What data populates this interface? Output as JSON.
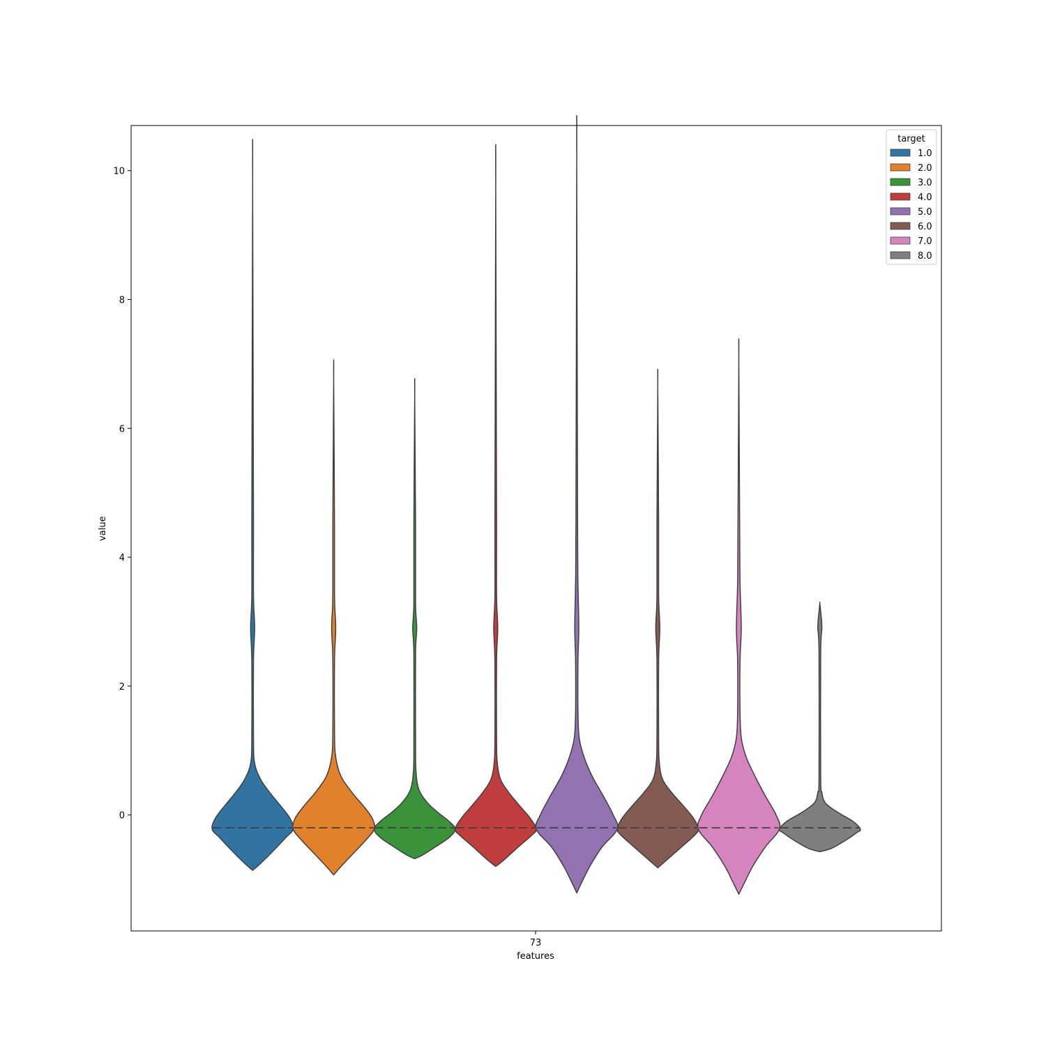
{
  "chart_data": {
    "type": "violin",
    "title": "",
    "xlabel": "features",
    "ylabel": "value",
    "categories": [
      "73"
    ],
    "ylim": [
      -1.8,
      10.7
    ],
    "yticks": [
      0,
      2,
      4,
      6,
      8,
      10
    ],
    "grid": false,
    "legend": {
      "title": "target",
      "placement": "top-right"
    },
    "series": [
      {
        "name": "1.0",
        "color": "#3274a1",
        "min": -0.86,
        "max": 9.82,
        "median": -0.2,
        "quartiles": [
          -0.2,
          -0.2
        ],
        "secondary_mode": 2.9,
        "density": [
          [
            -0.86,
            0.0
          ],
          [
            -0.75,
            0.2
          ],
          [
            -0.55,
            0.52
          ],
          [
            -0.35,
            0.82
          ],
          [
            -0.22,
            1.0
          ],
          [
            -0.05,
            0.92
          ],
          [
            0.15,
            0.68
          ],
          [
            0.35,
            0.42
          ],
          [
            0.55,
            0.2
          ],
          [
            0.8,
            0.05
          ],
          [
            1.2,
            0.02
          ],
          [
            2.4,
            0.02
          ],
          [
            2.9,
            0.05
          ],
          [
            3.4,
            0.02
          ],
          [
            4.5,
            0.01
          ],
          [
            9.82,
            0.0
          ]
        ]
      },
      {
        "name": "2.0",
        "color": "#e1812c",
        "min": -0.93,
        "max": 6.78,
        "median": -0.2,
        "quartiles": [
          -0.2,
          -0.2
        ],
        "secondary_mode": 2.9,
        "density": [
          [
            -0.93,
            0.0
          ],
          [
            -0.8,
            0.18
          ],
          [
            -0.6,
            0.48
          ],
          [
            -0.4,
            0.78
          ],
          [
            -0.22,
            1.0
          ],
          [
            -0.05,
            0.95
          ],
          [
            0.15,
            0.72
          ],
          [
            0.35,
            0.45
          ],
          [
            0.6,
            0.18
          ],
          [
            0.9,
            0.05
          ],
          [
            1.3,
            0.02
          ],
          [
            2.4,
            0.02
          ],
          [
            2.9,
            0.05
          ],
          [
            3.4,
            0.02
          ],
          [
            4.5,
            0.01
          ],
          [
            6.78,
            0.0
          ]
        ]
      },
      {
        "name": "3.0",
        "color": "#3a923a",
        "min": -0.68,
        "max": 6.52,
        "median": -0.2,
        "quartiles": [
          -0.2,
          -0.2
        ],
        "secondary_mode": 2.9,
        "density": [
          [
            -0.68,
            0.0
          ],
          [
            -0.62,
            0.2
          ],
          [
            -0.5,
            0.5
          ],
          [
            -0.35,
            0.85
          ],
          [
            -0.22,
            1.0
          ],
          [
            -0.1,
            0.85
          ],
          [
            0.05,
            0.55
          ],
          [
            0.2,
            0.3
          ],
          [
            0.4,
            0.1
          ],
          [
            0.7,
            0.03
          ],
          [
            1.2,
            0.02
          ],
          [
            2.5,
            0.02
          ],
          [
            2.9,
            0.05
          ],
          [
            3.3,
            0.02
          ],
          [
            4.5,
            0.01
          ],
          [
            6.52,
            0.0
          ]
        ]
      },
      {
        "name": "4.0",
        "color": "#c03d3e",
        "min": -0.8,
        "max": 9.75,
        "median": -0.2,
        "quartiles": [
          -0.2,
          -0.2
        ],
        "secondary_mode": 2.9,
        "density": [
          [
            -0.8,
            0.0
          ],
          [
            -0.7,
            0.2
          ],
          [
            -0.5,
            0.55
          ],
          [
            -0.32,
            0.88
          ],
          [
            -0.22,
            1.0
          ],
          [
            -0.05,
            0.85
          ],
          [
            0.15,
            0.58
          ],
          [
            0.35,
            0.32
          ],
          [
            0.55,
            0.12
          ],
          [
            0.8,
            0.04
          ],
          [
            1.2,
            0.02
          ],
          [
            2.4,
            0.02
          ],
          [
            2.9,
            0.05
          ],
          [
            3.4,
            0.02
          ],
          [
            4.5,
            0.01
          ],
          [
            9.75,
            0.0
          ]
        ]
      },
      {
        "name": "5.0",
        "color": "#9372b2",
        "min": -1.21,
        "max": 10.15,
        "median": -0.2,
        "quartiles": [
          -0.2,
          -0.2
        ],
        "secondary_mode": 2.9,
        "density": [
          [
            -1.21,
            0.0
          ],
          [
            -1.05,
            0.12
          ],
          [
            -0.8,
            0.32
          ],
          [
            -0.5,
            0.62
          ],
          [
            -0.22,
            1.0
          ],
          [
            0.0,
            0.9
          ],
          [
            0.3,
            0.65
          ],
          [
            0.6,
            0.38
          ],
          [
            0.9,
            0.18
          ],
          [
            1.2,
            0.06
          ],
          [
            1.6,
            0.03
          ],
          [
            2.4,
            0.03
          ],
          [
            2.9,
            0.05
          ],
          [
            3.6,
            0.03
          ],
          [
            4.5,
            0.01
          ],
          [
            10.15,
            0.0
          ]
        ]
      },
      {
        "name": "6.0",
        "color": "#845b53",
        "min": -0.82,
        "max": 6.65,
        "median": -0.2,
        "quartiles": [
          -0.2,
          -0.2
        ],
        "secondary_mode": 2.9,
        "density": [
          [
            -0.82,
            0.0
          ],
          [
            -0.7,
            0.22
          ],
          [
            -0.5,
            0.58
          ],
          [
            -0.32,
            0.9
          ],
          [
            -0.22,
            1.0
          ],
          [
            -0.05,
            0.88
          ],
          [
            0.15,
            0.62
          ],
          [
            0.35,
            0.34
          ],
          [
            0.55,
            0.12
          ],
          [
            0.8,
            0.04
          ],
          [
            1.2,
            0.02
          ],
          [
            2.4,
            0.02
          ],
          [
            2.9,
            0.05
          ],
          [
            3.4,
            0.02
          ],
          [
            4.5,
            0.01
          ],
          [
            6.65,
            0.0
          ]
        ]
      },
      {
        "name": "7.0",
        "color": "#d684bd",
        "min": -1.23,
        "max": 7.07,
        "median": -0.2,
        "quartiles": [
          -0.2,
          -0.2
        ],
        "secondary_mode": 2.9,
        "density": [
          [
            -1.23,
            0.0
          ],
          [
            -1.05,
            0.14
          ],
          [
            -0.8,
            0.34
          ],
          [
            -0.5,
            0.65
          ],
          [
            -0.22,
            1.0
          ],
          [
            0.0,
            0.92
          ],
          [
            0.3,
            0.65
          ],
          [
            0.6,
            0.4
          ],
          [
            0.9,
            0.18
          ],
          [
            1.2,
            0.06
          ],
          [
            1.6,
            0.03
          ],
          [
            2.4,
            0.03
          ],
          [
            2.9,
            0.06
          ],
          [
            3.6,
            0.03
          ],
          [
            4.5,
            0.01
          ],
          [
            7.07,
            0.0
          ]
        ]
      },
      {
        "name": "8.0",
        "color": "#7f7f7f",
        "min": -0.57,
        "max": 3.28,
        "median": -0.2,
        "quartiles": [
          -0.2,
          -0.2
        ],
        "secondary_mode": 2.9,
        "density": [
          [
            -0.57,
            0.0
          ],
          [
            -0.52,
            0.28
          ],
          [
            -0.4,
            0.62
          ],
          [
            -0.28,
            0.9
          ],
          [
            -0.22,
            1.0
          ],
          [
            -0.1,
            0.82
          ],
          [
            0.0,
            0.55
          ],
          [
            0.1,
            0.3
          ],
          [
            0.2,
            0.12
          ],
          [
            0.35,
            0.05
          ],
          [
            0.6,
            0.02
          ],
          [
            2.5,
            0.02
          ],
          [
            2.9,
            0.05
          ],
          [
            3.1,
            0.03
          ],
          [
            3.28,
            0.0
          ]
        ]
      }
    ]
  }
}
